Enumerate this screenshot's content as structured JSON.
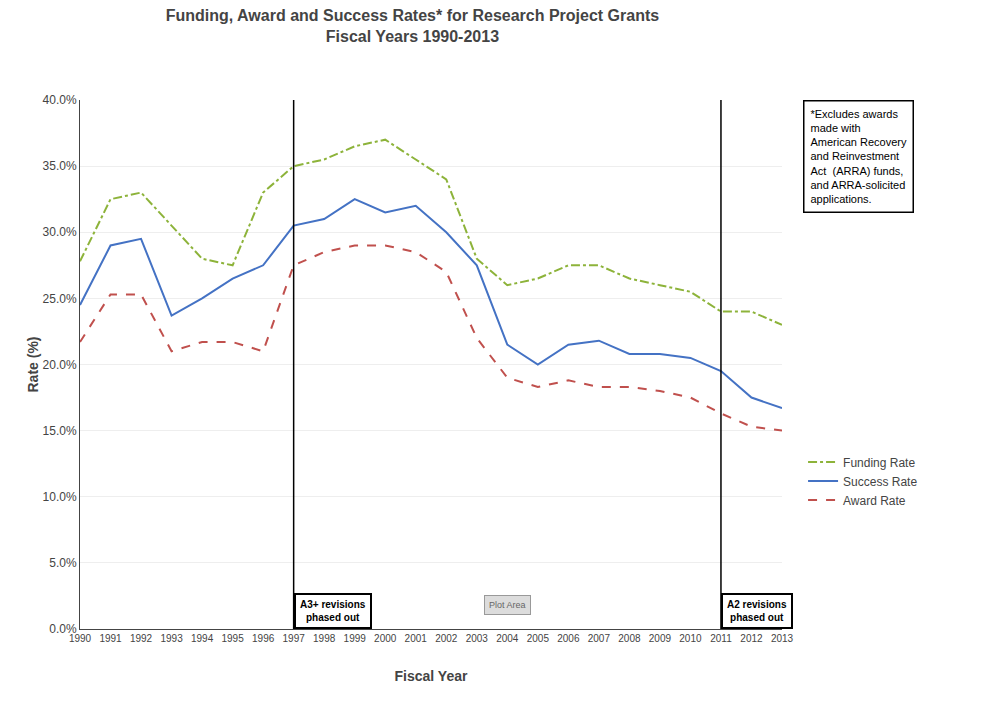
{
  "chart_data": {
    "type": "line",
    "title": "Funding, Award and Success Rates* for Research Project Grants",
    "subtitle": "Fiscal Years 1990-2013",
    "xlabel": "Fiscal Year",
    "ylabel": "Rate (%)",
    "x": [
      1990,
      1991,
      1992,
      1993,
      1994,
      1995,
      1996,
      1997,
      1998,
      1999,
      2000,
      2001,
      2002,
      2003,
      2004,
      2005,
      2006,
      2007,
      2008,
      2009,
      2010,
      2011,
      2012,
      2013
    ],
    "series": [
      {
        "name": "Funding Rate",
        "color": "#8DB33A",
        "line_style": "dashdot",
        "values": [
          0.278,
          0.325,
          0.33,
          0.305,
          0.28,
          0.275,
          0.33,
          0.35,
          0.355,
          0.365,
          0.37,
          0.355,
          0.34,
          0.28,
          0.26,
          0.265,
          0.275,
          0.275,
          0.265,
          0.26,
          0.255,
          0.24,
          0.24,
          0.23
        ]
      },
      {
        "name": "Success Rate",
        "color": "#4472C4",
        "line_style": "solid",
        "values": [
          0.245,
          0.29,
          0.295,
          0.237,
          0.25,
          0.265,
          0.275,
          0.305,
          0.31,
          0.325,
          0.315,
          0.32,
          0.3,
          0.275,
          0.215,
          0.2,
          0.215,
          0.218,
          0.208,
          0.208,
          0.205,
          0.195,
          0.175,
          0.167
        ]
      },
      {
        "name": "Award Rate",
        "color": "#C0504D",
        "line_style": "dash",
        "values": [
          0.217,
          0.253,
          0.253,
          0.21,
          0.217,
          0.217,
          0.21,
          0.275,
          0.285,
          0.29,
          0.29,
          0.285,
          0.27,
          0.22,
          0.19,
          0.183,
          0.188,
          0.183,
          0.183,
          0.18,
          0.175,
          0.163,
          0.153,
          0.15
        ]
      }
    ],
    "xlim": [
      1990,
      2013
    ],
    "xticks": [
      1990,
      1991,
      1992,
      1993,
      1994,
      1995,
      1996,
      1997,
      1998,
      1999,
      2000,
      2001,
      2002,
      2003,
      2004,
      2005,
      2006,
      2007,
      2008,
      2009,
      2010,
      2011,
      2012,
      2013
    ],
    "ylim": [
      0.0,
      0.4
    ],
    "yticks": [
      {
        "value": 0.0,
        "label": "0.0%"
      },
      {
        "value": 0.05,
        "label": "5.0%"
      },
      {
        "value": 0.1,
        "label": "10.0%"
      },
      {
        "value": 0.15,
        "label": "15.0%"
      },
      {
        "value": 0.2,
        "label": "20.0%"
      },
      {
        "value": 0.25,
        "label": "25.0%"
      },
      {
        "value": 0.3,
        "label": "30.0%"
      },
      {
        "value": 0.35,
        "label": "35.0%"
      },
      {
        "value": 0.4,
        "label": "40.0%"
      }
    ],
    "vlines": [
      1997,
      2011
    ],
    "annotations": [
      "A3+ revisions\nphased out",
      "A2 revisions\nphased out",
      "Plot Area"
    ],
    "note": "*Excludes awards\nmade with\nAmerican Recovery\nand Reinvestment\nAct  (ARRA) funds,\nand ARRA-solicited\napplications.",
    "grid": true,
    "legend": "right"
  }
}
